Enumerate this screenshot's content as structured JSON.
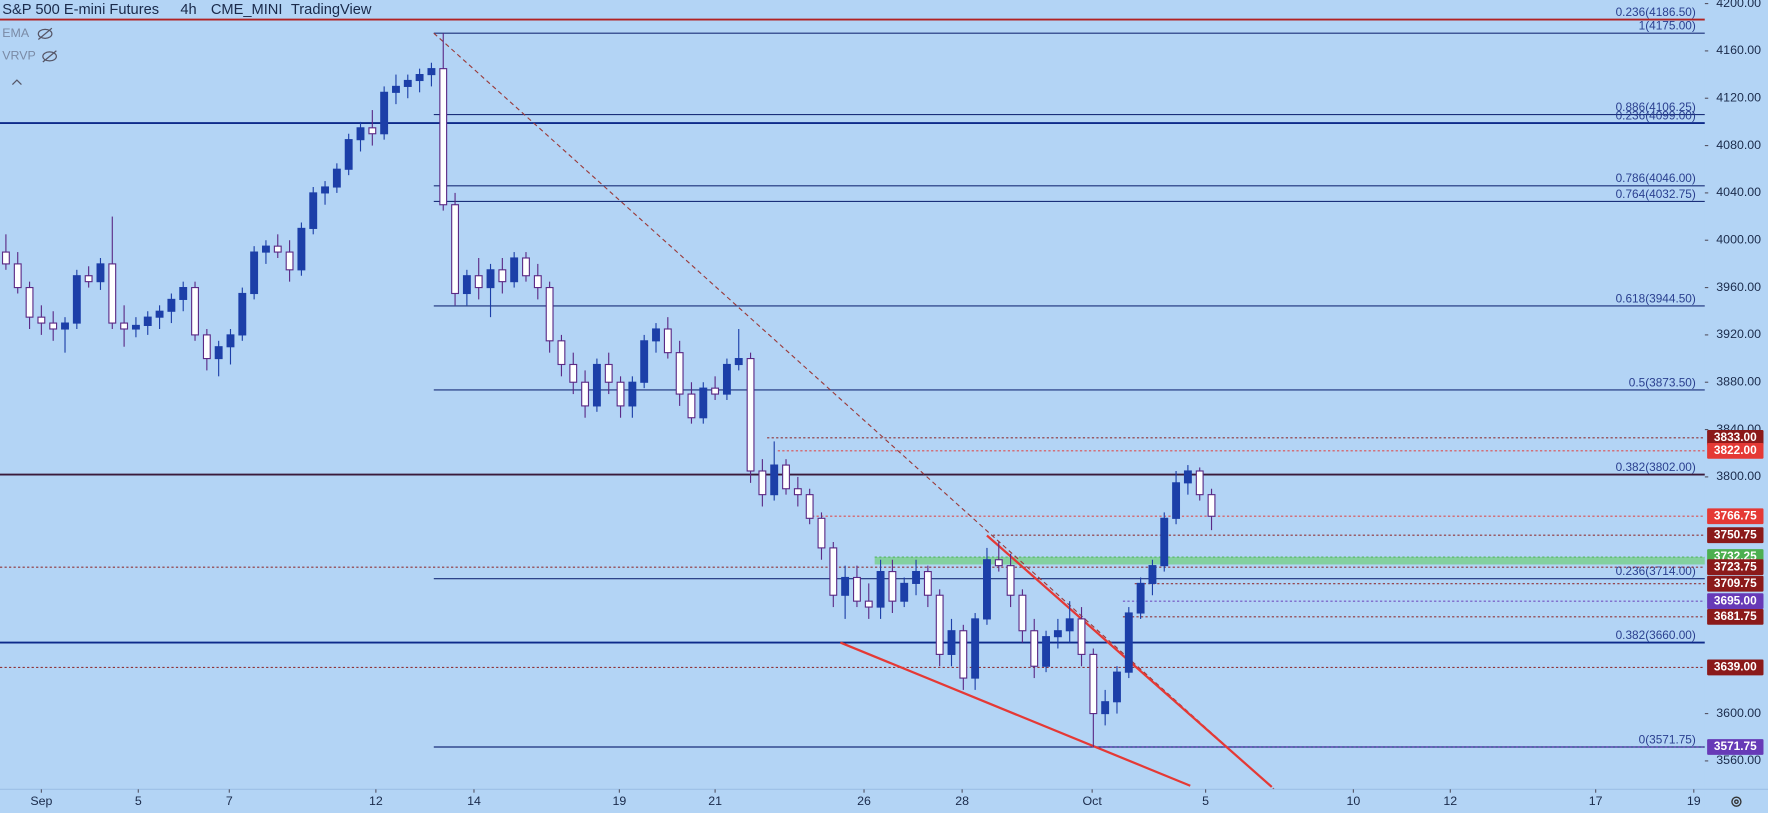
{
  "header": {
    "symbol": "S&P 500 E-mini Futures",
    "interval": "4h",
    "exchange": "CME_MINI",
    "source": "TradingView"
  },
  "indicators": [
    "EMA",
    "VRVP"
  ],
  "chart_data": {
    "type": "candlestick",
    "up_color": "#1c3fa8",
    "down_color": "#ffffff",
    "down_border": "#5b2a86",
    "xlim": [
      0,
      145
    ],
    "xticks": [
      {
        "value": 3.5,
        "label": "Sep"
      },
      {
        "value": 11.7,
        "label": "5"
      },
      {
        "value": 19.4,
        "label": "7"
      },
      {
        "value": 31.8,
        "label": "12"
      },
      {
        "value": 40.1,
        "label": "14"
      },
      {
        "value": 52.4,
        "label": "19"
      },
      {
        "value": 60.5,
        "label": "21"
      },
      {
        "value": 73.1,
        "label": "26"
      },
      {
        "value": 81.4,
        "label": "28"
      },
      {
        "value": 92.4,
        "label": "Oct"
      },
      {
        "value": 102,
        "label": "5"
      },
      {
        "value": 114.5,
        "label": "10"
      },
      {
        "value": 122.7,
        "label": "12"
      },
      {
        "value": 135,
        "label": "17"
      },
      {
        "value": 143.3,
        "label": "19"
      }
    ],
    "ylim": [
      3536,
      4203
    ],
    "yticks": [
      {
        "value": 4200,
        "label": "4200.00"
      },
      {
        "value": 4160,
        "label": "4160.00"
      },
      {
        "value": 4120,
        "label": "4120.00"
      },
      {
        "value": 4080,
        "label": "4080.00"
      },
      {
        "value": 4040,
        "label": "4040.00"
      },
      {
        "value": 4000,
        "label": "4000.00"
      },
      {
        "value": 3960,
        "label": "3960.00"
      },
      {
        "value": 3920,
        "label": "3920.00"
      },
      {
        "value": 3880,
        "label": "3880.00"
      },
      {
        "value": 3840,
        "label": "3840.00"
      },
      {
        "value": 3800,
        "label": "3800.00"
      },
      {
        "value": 3600,
        "label": "3600.00"
      },
      {
        "value": 3560,
        "label": "3560.00"
      }
    ],
    "ohlc": [
      [
        3990,
        4005,
        3975,
        3980
      ],
      [
        3980,
        3990,
        3955,
        3960
      ],
      [
        3960,
        3965,
        3925,
        3935
      ],
      [
        3935,
        3945,
        3920,
        3930
      ],
      [
        3930,
        3940,
        3915,
        3925
      ],
      [
        3925,
        3935,
        3905,
        3930
      ],
      [
        3930,
        3975,
        3925,
        3970
      ],
      [
        3970,
        3978,
        3960,
        3965
      ],
      [
        3965,
        3985,
        3958,
        3980
      ],
      [
        3980,
        4020,
        3925,
        3930
      ],
      [
        3930,
        3945,
        3910,
        3925
      ],
      [
        3925,
        3935,
        3918,
        3928
      ],
      [
        3928,
        3940,
        3920,
        3935
      ],
      [
        3935,
        3945,
        3925,
        3940
      ],
      [
        3940,
        3955,
        3930,
        3950
      ],
      [
        3950,
        3965,
        3940,
        3960
      ],
      [
        3960,
        3965,
        3915,
        3920
      ],
      [
        3920,
        3925,
        3890,
        3900
      ],
      [
        3900,
        3915,
        3885,
        3910
      ],
      [
        3910,
        3925,
        3895,
        3920
      ],
      [
        3920,
        3960,
        3915,
        3955
      ],
      [
        3955,
        3995,
        3950,
        3990
      ],
      [
        3990,
        4000,
        3980,
        3995
      ],
      [
        3995,
        4005,
        3985,
        3990
      ],
      [
        3990,
        4000,
        3965,
        3975
      ],
      [
        3975,
        4015,
        3970,
        4010
      ],
      [
        4010,
        4045,
        4005,
        4040
      ],
      [
        4040,
        4050,
        4030,
        4045
      ],
      [
        4045,
        4065,
        4040,
        4060
      ],
      [
        4060,
        4090,
        4055,
        4085
      ],
      [
        4085,
        4100,
        4075,
        4095
      ],
      [
        4095,
        4110,
        4080,
        4090
      ],
      [
        4090,
        4130,
        4085,
        4125
      ],
      [
        4125,
        4140,
        4115,
        4130
      ],
      [
        4130,
        4140,
        4120,
        4135
      ],
      [
        4135,
        4145,
        4125,
        4140
      ],
      [
        4140,
        4150,
        4130,
        4145
      ],
      [
        4145,
        4175,
        4025,
        4030
      ],
      [
        4030,
        4040,
        3945,
        3955
      ],
      [
        3955,
        3975,
        3945,
        3970
      ],
      [
        3970,
        3985,
        3950,
        3960
      ],
      [
        3960,
        3980,
        3935,
        3975
      ],
      [
        3975,
        3985,
        3955,
        3965
      ],
      [
        3965,
        3990,
        3960,
        3985
      ],
      [
        3985,
        3990,
        3965,
        3970
      ],
      [
        3970,
        3980,
        3950,
        3960
      ],
      [
        3960,
        3965,
        3905,
        3915
      ],
      [
        3915,
        3920,
        3885,
        3895
      ],
      [
        3895,
        3905,
        3870,
        3880
      ],
      [
        3880,
        3890,
        3850,
        3860
      ],
      [
        3860,
        3900,
        3855,
        3895
      ],
      [
        3895,
        3905,
        3870,
        3880
      ],
      [
        3880,
        3885,
        3850,
        3860
      ],
      [
        3860,
        3885,
        3850,
        3880
      ],
      [
        3880,
        3920,
        3875,
        3915
      ],
      [
        3915,
        3930,
        3905,
        3925
      ],
      [
        3925,
        3935,
        3900,
        3905
      ],
      [
        3905,
        3915,
        3860,
        3870
      ],
      [
        3870,
        3880,
        3845,
        3850
      ],
      [
        3850,
        3880,
        3845,
        3875
      ],
      [
        3875,
        3885,
        3865,
        3870
      ],
      [
        3870,
        3900,
        3865,
        3895
      ],
      [
        3895,
        3925,
        3890,
        3900
      ],
      [
        3900,
        3905,
        3795,
        3805
      ],
      [
        3805,
        3815,
        3775,
        3785
      ],
      [
        3785,
        3830,
        3780,
        3810
      ],
      [
        3810,
        3815,
        3785,
        3790
      ],
      [
        3790,
        3800,
        3775,
        3785
      ],
      [
        3785,
        3790,
        3760,
        3765
      ],
      [
        3765,
        3770,
        3730,
        3740
      ],
      [
        3740,
        3745,
        3690,
        3700
      ],
      [
        3700,
        3725,
        3680,
        3715
      ],
      [
        3715,
        3725,
        3690,
        3695
      ],
      [
        3695,
        3710,
        3680,
        3690
      ],
      [
        3690,
        3730,
        3680,
        3720
      ],
      [
        3720,
        3730,
        3685,
        3695
      ],
      [
        3695,
        3715,
        3690,
        3710
      ],
      [
        3710,
        3730,
        3700,
        3720
      ],
      [
        3720,
        3725,
        3690,
        3700
      ],
      [
        3700,
        3705,
        3640,
        3650
      ],
      [
        3650,
        3680,
        3640,
        3670
      ],
      [
        3670,
        3675,
        3620,
        3630
      ],
      [
        3630,
        3685,
        3620,
        3680
      ],
      [
        3680,
        3740,
        3675,
        3730
      ],
      [
        3730,
        3745,
        3720,
        3725
      ],
      [
        3725,
        3735,
        3690,
        3700
      ],
      [
        3700,
        3705,
        3660,
        3670
      ],
      [
        3670,
        3680,
        3630,
        3640
      ],
      [
        3640,
        3670,
        3635,
        3665
      ],
      [
        3665,
        3680,
        3655,
        3670
      ],
      [
        3670,
        3695,
        3660,
        3680
      ],
      [
        3680,
        3690,
        3640,
        3650
      ],
      [
        3650,
        3655,
        3571.75,
        3600
      ],
      [
        3600,
        3620,
        3590,
        3610
      ],
      [
        3610,
        3640,
        3600,
        3635
      ],
      [
        3635,
        3690,
        3630,
        3685
      ],
      [
        3685,
        3715,
        3680,
        3710
      ],
      [
        3710,
        3730,
        3700,
        3725
      ],
      [
        3725,
        3770,
        3720,
        3765
      ],
      [
        3765,
        3805,
        3760,
        3795
      ],
      [
        3795,
        3810,
        3785,
        3805
      ],
      [
        3805,
        3808,
        3780,
        3785
      ],
      [
        3785,
        3790,
        3755,
        3766.75
      ]
    ],
    "levels": [
      {
        "label": "0.236(4186.50)",
        "value": 4186.5,
        "color": "#b22222"
      },
      {
        "label": "1(4175.00)",
        "value": 4175,
        "x_start": 36.7,
        "color": "#1a2f7a"
      },
      {
        "label": "0.886(4106.25)",
        "value": 4106.25,
        "x_start": 36.7,
        "color": "#1a2f7a"
      },
      {
        "label": "0.236(4099.00)",
        "value": 4099,
        "color": "#0d2a8a"
      },
      {
        "label": "0.786(4046.00)",
        "value": 4046,
        "x_start": 36.7,
        "color": "#1a2f7a"
      },
      {
        "label": "0.764(4032.75)",
        "value": 4032.75,
        "x_start": 36.7,
        "color": "#1a2f7a"
      },
      {
        "label": "0.618(3944.50)",
        "value": 3944.5,
        "x_start": 36.7,
        "color": "#1a2f7a"
      },
      {
        "label": "0.5(3873.50)",
        "value": 3873.5,
        "x_start": 36.7,
        "color": "#1a2f7a"
      },
      {
        "label": "0.382(3802.00)",
        "value": 3802,
        "color": "#3a1a3a"
      },
      {
        "label": "0.236(3714.00)",
        "value": 3714,
        "x_start": 36.7,
        "color": "#1a2f7a"
      },
      {
        "label": "0.382(3660.00)",
        "value": 3660,
        "color": "#0d2a8a"
      },
      {
        "label": "0(3571.75)",
        "value": 3571.75,
        "x_start": 36.7,
        "color": "#1a2f7a"
      }
    ],
    "price_tags": [
      {
        "value": 3833,
        "label": "3833.00",
        "color": "#8b1a1a",
        "x_start": 64.9
      },
      {
        "value": 3822,
        "label": "3822.00",
        "color": "#e53935",
        "x_start": 65.8
      },
      {
        "value": 3766.75,
        "label": "3766.75",
        "color": "#e53935",
        "x_start": 68.7
      },
      {
        "value": 3750.75,
        "label": "3750.75",
        "color": "#8b1a1a",
        "x_start": 84
      },
      {
        "value": 3732.25,
        "label": "3732.25",
        "color": "#4caf50",
        "x_start": 74
      },
      {
        "value": 3723.75,
        "label": "3723.75",
        "color": "#8b1a1a"
      },
      {
        "value": 3709.75,
        "label": "3709.75",
        "color": "#8b1a1a",
        "x_start": 96
      },
      {
        "value": 3695,
        "label": "3695.00",
        "color": "#673ab7",
        "x_start": 95
      },
      {
        "value": 3681.75,
        "label": "3681.75",
        "color": "#8b1a1a",
        "x_start": 95
      },
      {
        "value": 3639,
        "label": "3639.00",
        "color": "#8b1a1a"
      },
      {
        "value": 3571.75,
        "label": "3571.75",
        "color": "#673ab7",
        "x_start": 92
      }
    ],
    "zone": {
      "low": 3726,
      "high": 3732.25,
      "x_start": 74,
      "color": "#6fcf7a"
    },
    "trendlines": [
      {
        "x": [
          36.7,
          107.8
        ],
        "y": [
          4175,
          3536
        ],
        "color": "#9a3b3b",
        "dashed": true
      },
      {
        "x": [
          83.5,
          107.6
        ],
        "y": [
          3750.5,
          3538
        ],
        "color": "#e53935",
        "dashed": false
      },
      {
        "x": [
          71.1,
          100.7
        ],
        "y": [
          3660,
          3539
        ],
        "color": "#e53935",
        "dashed": false
      }
    ]
  }
}
